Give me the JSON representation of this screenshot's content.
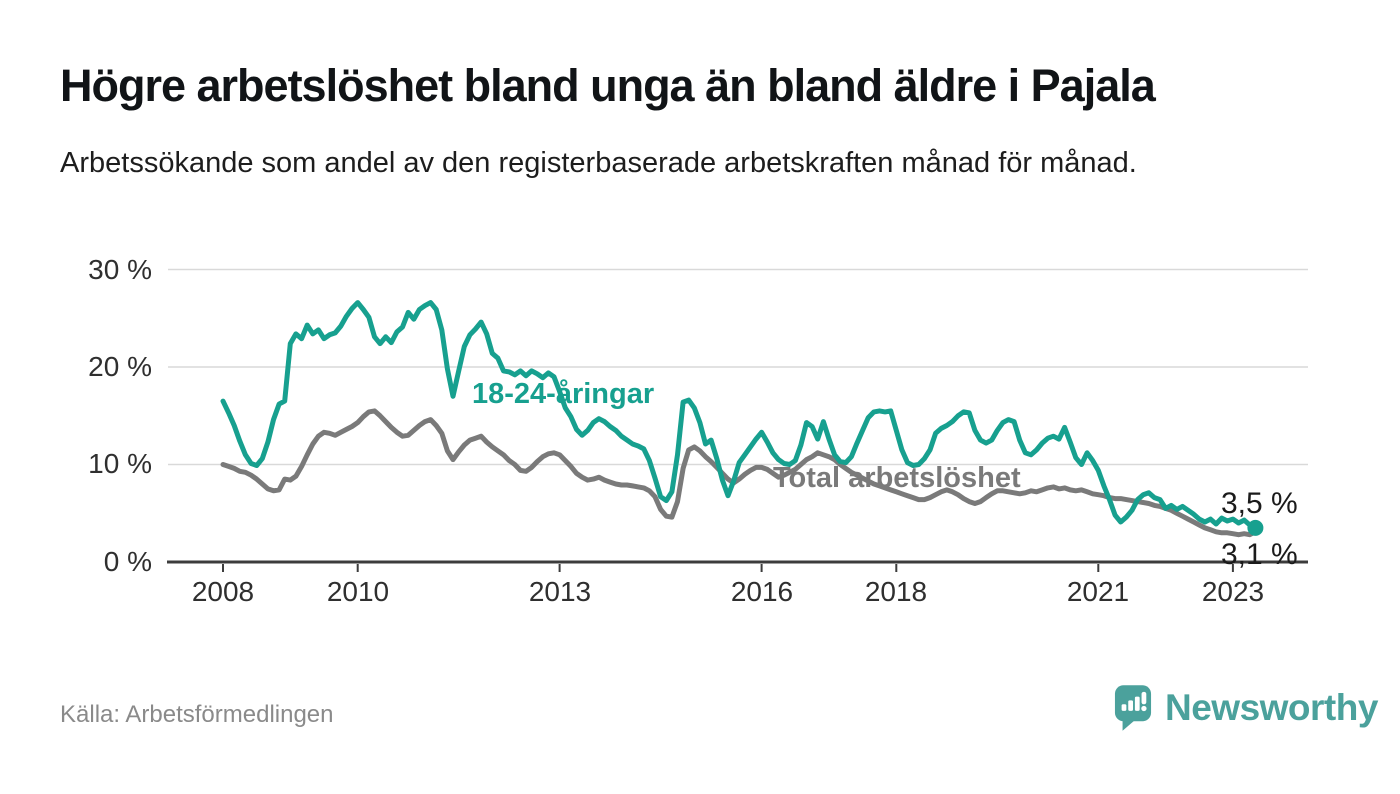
{
  "chart_data": {
    "type": "line",
    "title": "Högre arbetslöshet bland unga än bland äldre i Pajala",
    "subtitle": "Arbetssökande som andel av den registerbaserade arbetskraften månad för månad.",
    "unit": "%",
    "frequency": "monthly",
    "x_start": "2008-01",
    "x_end": "2023-05",
    "ylim": [
      0,
      30
    ],
    "grid": "horizontal",
    "x_axis": {
      "labels": [
        "2008",
        "2010",
        "2013",
        "2016",
        "2018",
        "2021",
        "2023"
      ],
      "years": [
        2008,
        2010,
        2013,
        2016,
        2018,
        2021,
        2023
      ]
    },
    "y_axis": {
      "labels": [
        "30 %",
        "20 %",
        "10 %",
        "0 %"
      ],
      "values": [
        30,
        20,
        10,
        0
      ]
    },
    "series": [
      {
        "name": "18-24-åringar",
        "color": "#17a08f",
        "end_label": "3,5 %",
        "end_dot": true,
        "values": [
          16.5,
          15.3,
          14.0,
          12.4,
          11.0,
          10.1,
          9.9,
          10.6,
          12.3,
          14.6,
          16.2,
          16.5,
          22.4,
          23.4,
          22.9,
          24.3,
          23.4,
          23.8,
          22.9,
          23.3,
          23.5,
          24.2,
          25.2,
          26.0,
          26.6,
          25.9,
          25.1,
          23.1,
          22.4,
          23.1,
          22.5,
          23.6,
          24.1,
          25.6,
          24.9,
          25.9,
          26.3,
          26.6,
          25.9,
          23.8,
          19.8,
          17.0,
          19.6,
          22.1,
          23.3,
          23.9,
          24.6,
          23.4,
          21.4,
          20.9,
          19.6,
          19.5,
          19.2,
          19.6,
          19.1,
          19.6,
          19.3,
          18.9,
          19.4,
          19.0,
          17.5,
          15.8,
          14.9,
          13.6,
          13.0,
          13.5,
          14.3,
          14.7,
          14.4,
          13.9,
          13.5,
          12.9,
          12.5,
          12.1,
          11.9,
          11.6,
          10.4,
          8.6,
          6.7,
          6.3,
          7.2,
          11.0,
          16.4,
          16.6,
          15.8,
          14.3,
          12.1,
          12.5,
          10.6,
          8.4,
          6.8,
          8.3,
          10.2,
          11.0,
          11.8,
          12.6,
          13.3,
          12.3,
          11.2,
          10.5,
          10.1,
          10.0,
          10.4,
          12.0,
          14.3,
          13.9,
          12.6,
          14.4,
          12.6,
          11.0,
          10.3,
          10.2,
          10.8,
          12.2,
          13.5,
          14.8,
          15.4,
          15.5,
          15.4,
          15.5,
          13.5,
          11.5,
          10.2,
          9.9,
          10.0,
          10.6,
          11.5,
          13.2,
          13.7,
          14.0,
          14.4,
          15.0,
          15.4,
          15.3,
          13.5,
          12.5,
          12.2,
          12.5,
          13.5,
          14.3,
          14.6,
          14.4,
          12.5,
          11.2,
          11.0,
          11.5,
          12.2,
          12.7,
          12.9,
          12.6,
          13.8,
          12.3,
          10.7,
          10.0,
          11.2,
          10.4,
          9.4,
          7.8,
          6.4,
          4.8,
          4.1,
          4.6,
          5.3,
          6.4,
          6.9,
          7.1,
          6.6,
          6.4,
          5.5,
          5.8,
          5.4,
          5.7,
          5.3,
          4.9,
          4.4,
          4.1,
          4.4,
          3.9,
          4.5,
          4.2,
          4.4,
          4.0,
          4.3,
          3.8,
          3.5
        ]
      },
      {
        "name": "Total arbetslöshet",
        "color": "#7a7a7a",
        "end_label": "3,1 %",
        "end_dot": false,
        "values": [
          10.0,
          9.8,
          9.6,
          9.3,
          9.2,
          8.9,
          8.5,
          8.0,
          7.5,
          7.3,
          7.4,
          8.5,
          8.4,
          8.8,
          9.8,
          11.0,
          12.1,
          12.9,
          13.3,
          13.2,
          13.0,
          13.3,
          13.6,
          13.9,
          14.3,
          14.9,
          15.4,
          15.5,
          15.0,
          14.4,
          13.8,
          13.3,
          12.9,
          13.0,
          13.5,
          14.0,
          14.4,
          14.6,
          14.0,
          13.2,
          11.4,
          10.5,
          11.3,
          12.0,
          12.5,
          12.7,
          12.9,
          12.3,
          11.8,
          11.4,
          11.0,
          10.4,
          10.0,
          9.4,
          9.3,
          9.7,
          10.3,
          10.8,
          11.1,
          11.2,
          11.0,
          10.4,
          9.8,
          9.1,
          8.7,
          8.4,
          8.5,
          8.7,
          8.4,
          8.2,
          8.0,
          7.9,
          7.9,
          7.8,
          7.7,
          7.6,
          7.3,
          6.7,
          5.4,
          4.7,
          4.6,
          6.2,
          9.6,
          11.5,
          11.8,
          11.4,
          10.8,
          10.3,
          9.7,
          9.1,
          8.5,
          8.1,
          8.5,
          9.0,
          9.4,
          9.7,
          9.7,
          9.5,
          9.1,
          8.7,
          8.9,
          9.2,
          9.5,
          10.0,
          10.5,
          10.8,
          11.2,
          11.0,
          10.8,
          10.5,
          10.0,
          9.6,
          9.2,
          8.9,
          8.6,
          8.3,
          8.0,
          7.8,
          7.6,
          7.4,
          7.2,
          7.0,
          6.8,
          6.6,
          6.4,
          6.4,
          6.6,
          6.9,
          7.2,
          7.4,
          7.2,
          6.9,
          6.5,
          6.2,
          6.0,
          6.2,
          6.6,
          7.0,
          7.3,
          7.3,
          7.2,
          7.1,
          7.0,
          7.1,
          7.3,
          7.2,
          7.4,
          7.6,
          7.7,
          7.5,
          7.6,
          7.4,
          7.3,
          7.4,
          7.2,
          7.0,
          6.9,
          6.8,
          6.6,
          6.5,
          6.5,
          6.4,
          6.3,
          6.2,
          6.1,
          6.0,
          5.8,
          5.7,
          5.5,
          5.3,
          5.0,
          4.7,
          4.4,
          4.1,
          3.8,
          3.5,
          3.3,
          3.1,
          3.0,
          3.0,
          2.9,
          2.8,
          2.9,
          2.8,
          3.1
        ]
      }
    ],
    "colors": {
      "grid": "#d9d9d9",
      "axis": "#3c3c3c",
      "tick_text": "#2f2f2f"
    }
  },
  "footer": {
    "source": "Källa: Arbetsförmedlingen",
    "brand": "Newsworthy",
    "brand_color": "#4ba19c"
  }
}
